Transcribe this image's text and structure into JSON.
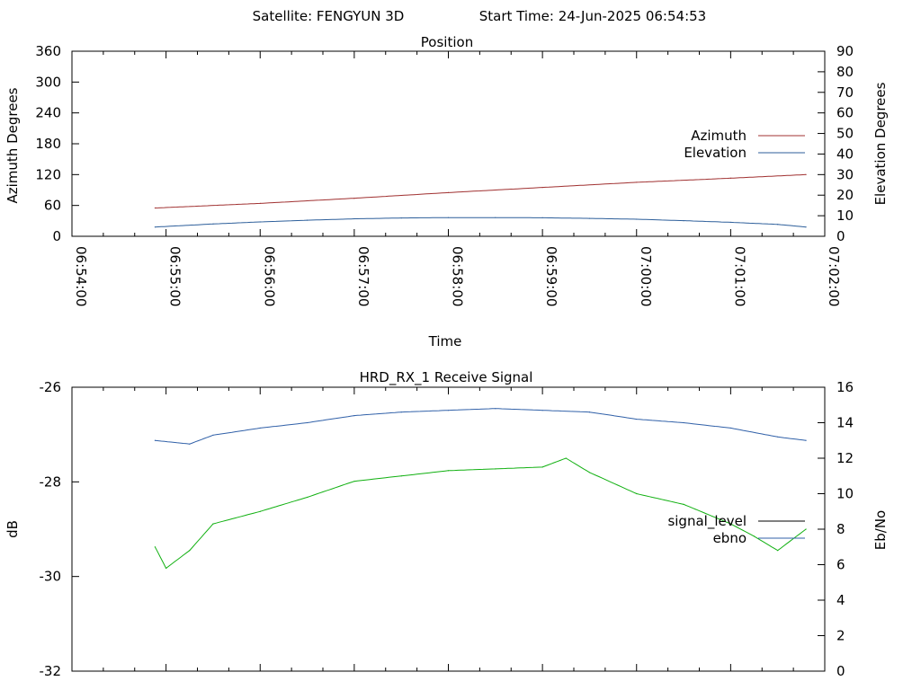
{
  "header": {
    "satellite": "Satellite: FENGYUN 3D",
    "start_time": "Start Time: 24-Jun-2025 06:54:53"
  },
  "chart_data": [
    {
      "type": "line",
      "title": "Position",
      "xlabel": "Time",
      "ylabel": "Azimuth Degrees",
      "y2label": "Elevation Degrees",
      "x_range": [
        "06:54:00",
        "07:02:00"
      ],
      "x_ticks": [
        "06:54:00",
        "06:55:00",
        "06:56:00",
        "06:57:00",
        "06:58:00",
        "06:59:00",
        "07:00:00",
        "07:01:00",
        "07:02:00"
      ],
      "ylim": [
        0,
        360
      ],
      "y_ticks": [
        "0",
        "60",
        "120",
        "180",
        "240",
        "300",
        "360"
      ],
      "y2lim": [
        0,
        90
      ],
      "y2_ticks": [
        "0",
        "10",
        "20",
        "30",
        "40",
        "50",
        "60",
        "70",
        "80",
        "90"
      ],
      "legend_position": "right",
      "series": [
        {
          "name": "Azimuth",
          "axis": "y",
          "color": "#a03030",
          "x": [
            "06:54:53",
            "06:56:00",
            "06:57:00",
            "06:58:00",
            "06:59:00",
            "07:00:00",
            "07:01:00",
            "07:01:48"
          ],
          "values": [
            55,
            64,
            74,
            85,
            95,
            105,
            113,
            120
          ]
        },
        {
          "name": "Elevation",
          "axis": "y2",
          "color": "#2c5e9a",
          "x": [
            "06:54:53",
            "06:55:30",
            "06:56:00",
            "06:56:30",
            "06:57:00",
            "06:57:30",
            "06:58:00",
            "06:58:30",
            "06:59:00",
            "06:59:30",
            "07:00:00",
            "07:00:30",
            "07:01:00",
            "07:01:30",
            "07:01:48"
          ],
          "values": [
            4.5,
            6.0,
            7.0,
            7.8,
            8.5,
            8.9,
            9.1,
            9.1,
            9.0,
            8.7,
            8.3,
            7.6,
            6.8,
            5.8,
            4.5
          ]
        }
      ]
    },
    {
      "type": "line",
      "title": "HRD_RX_1 Receive Signal",
      "ylabel": "dB",
      "y2label": "Eb/No",
      "x_range": [
        "06:54:00",
        "07:02:00"
      ],
      "ylim": [
        -32,
        -26
      ],
      "y_ticks": [
        "-32",
        "-30",
        "-28",
        "-26"
      ],
      "y2lim": [
        0,
        16
      ],
      "y2_ticks": [
        "0",
        "2",
        "4",
        "6",
        "8",
        "10",
        "12",
        "14",
        "16"
      ],
      "legend_position": "right",
      "series": [
        {
          "name": "signal_level",
          "axis": "y",
          "color": "#000000",
          "x": [],
          "values": []
        },
        {
          "name": "ebno",
          "axis": "y2",
          "color": "#3060a8",
          "x": [
            "06:54:53",
            "06:55:15",
            "06:55:30",
            "06:56:00",
            "06:56:30",
            "06:57:00",
            "06:57:30",
            "06:58:00",
            "06:58:30",
            "06:59:00",
            "06:59:30",
            "07:00:00",
            "07:00:30",
            "07:01:00",
            "07:01:30",
            "07:01:48"
          ],
          "values": [
            13.0,
            12.8,
            13.3,
            13.7,
            14.0,
            14.4,
            14.6,
            14.7,
            14.8,
            14.7,
            14.6,
            14.2,
            14.0,
            13.7,
            13.2,
            13.0
          ]
        },
        {
          "name": "",
          "axis": "y2",
          "color": "#10b010",
          "x": [
            "06:54:53",
            "06:55:00",
            "06:55:15",
            "06:55:30",
            "06:56:00",
            "06:56:30",
            "06:57:00",
            "06:57:30",
            "06:58:00",
            "06:58:30",
            "06:59:00",
            "06:59:15",
            "06:59:30",
            "07:00:00",
            "07:00:30",
            "07:01:00",
            "07:01:15",
            "07:01:30",
            "07:01:48"
          ],
          "values": [
            7.0,
            5.8,
            6.8,
            8.3,
            9.0,
            9.8,
            10.7,
            11.0,
            11.3,
            11.4,
            11.5,
            12.0,
            11.2,
            10.0,
            9.4,
            8.3,
            7.6,
            6.8,
            8.0
          ]
        }
      ]
    }
  ]
}
